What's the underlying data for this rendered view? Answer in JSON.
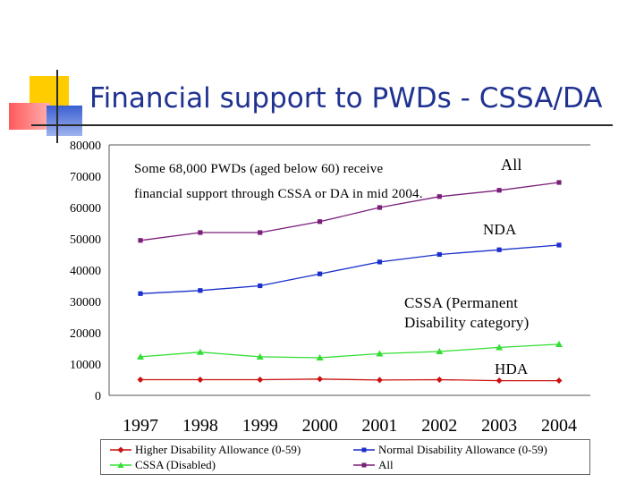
{
  "slide": {
    "title": "Financial support to PWDs - CSSA/DA"
  },
  "annotations": {
    "note_line1": "Some 68,000 PWDs (aged below 60) receive",
    "note_line2": "financial support through CSSA or DA in mid 2004.",
    "label_all": "All",
    "label_nda": "NDA",
    "label_cssa_line1": "CSSA (Permanent",
    "label_cssa_line2": "Disability category)",
    "label_hda": "HDA"
  },
  "colors": {
    "title": "#1f3290",
    "hda": "#cc1111",
    "nda": "#1a2fcc",
    "cssa": "#33dd33",
    "all": "#7a1f7a"
  },
  "chart_data": {
    "type": "line",
    "x": [
      "1997",
      "1998",
      "1999",
      "2000",
      "2001",
      "2002",
      "2003",
      "2004"
    ],
    "ylim": [
      0,
      80000
    ],
    "yticks": [
      0,
      10000,
      20000,
      30000,
      40000,
      50000,
      60000,
      70000,
      80000
    ],
    "grid": false,
    "legend_position": "bottom",
    "series": [
      {
        "name": "Higher Disability Allowance (0-59)",
        "color": "#cc1111",
        "marker": "diamond",
        "values": [
          5000,
          5000,
          5000,
          5200,
          4900,
          5000,
          4700,
          4700
        ]
      },
      {
        "name": "Normal Disability Allowance (0-59)",
        "color": "#1a2fcc",
        "marker": "square",
        "values": [
          32500,
          33500,
          35000,
          38800,
          42600,
          45000,
          46500,
          48000
        ]
      },
      {
        "name": "CSSA (Disabled)",
        "color": "#33dd33",
        "marker": "triangle",
        "values": [
          12300,
          13800,
          12300,
          12000,
          13300,
          14000,
          15300,
          16300
        ]
      },
      {
        "name": "All",
        "color": "#7a1f7a",
        "marker": "square",
        "values": [
          49500,
          52000,
          52000,
          55500,
          60000,
          63500,
          65500,
          68000
        ]
      }
    ]
  }
}
